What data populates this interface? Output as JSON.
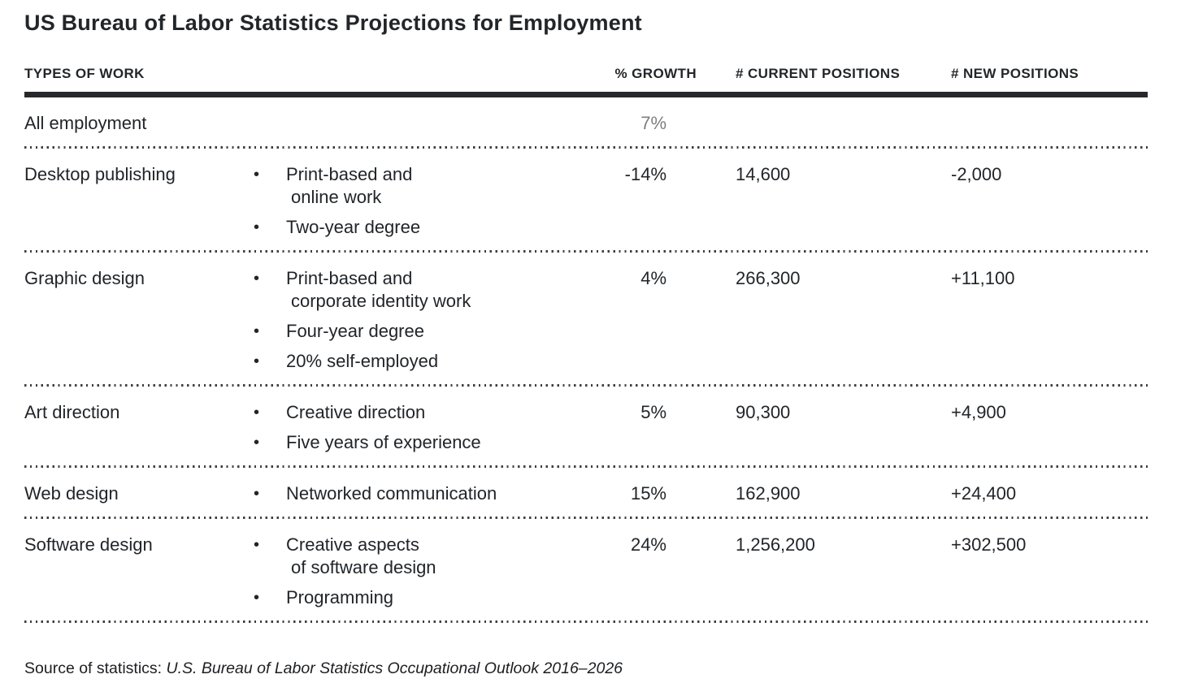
{
  "page": {
    "title": "US Bureau of Labor Statistics Projections for Employment"
  },
  "icons": {
    "bullet": "•"
  },
  "table": {
    "headers": {
      "types_of_work": "TYPES OF WORK",
      "growth": "% GROWTH",
      "current_positions": "# CURRENT POSITIONS",
      "new_positions": "# NEW POSITIONS"
    },
    "rows": [
      {
        "type": "All employment",
        "bullets": [],
        "growth": "7%",
        "current": "",
        "new": ""
      },
      {
        "type": "Desktop publishing",
        "bullets": [
          [
            "Print-based and",
            "online work"
          ],
          [
            "Two-year degree"
          ]
        ],
        "growth": "-14%",
        "current": "14,600",
        "new": "-2,000"
      },
      {
        "type": "Graphic design",
        "bullets": [
          [
            "Print-based and",
            "corporate identity work"
          ],
          [
            "Four-year degree"
          ],
          [
            "20% self-employed"
          ]
        ],
        "growth": "4%",
        "current": "266,300",
        "new": "+11,100"
      },
      {
        "type": "Art direction",
        "bullets": [
          [
            "Creative direction"
          ],
          [
            "Five years of experience"
          ]
        ],
        "growth": "5%",
        "current": "90,300",
        "new": "+4,900"
      },
      {
        "type": "Web design",
        "bullets": [
          [
            "Networked communication"
          ]
        ],
        "growth": "15%",
        "current": "162,900",
        "new": "+24,400"
      },
      {
        "type": "Software design",
        "bullets": [
          [
            "Creative aspects",
            "of software design"
          ],
          [
            "Programming"
          ]
        ],
        "growth": "24%",
        "current": "1,256,200",
        "new": "+302,500"
      }
    ]
  },
  "source": {
    "label": "Source of statistics:",
    "citation": "U.S. Bureau of Labor Statistics Occupational Outlook 2016–2026"
  },
  "colors": {
    "text": "#212529",
    "muted_growth": "#7e7e7e",
    "header_rule": "#26282b",
    "dotted_divider": "#3d3f42",
    "background": "#ffffff"
  }
}
